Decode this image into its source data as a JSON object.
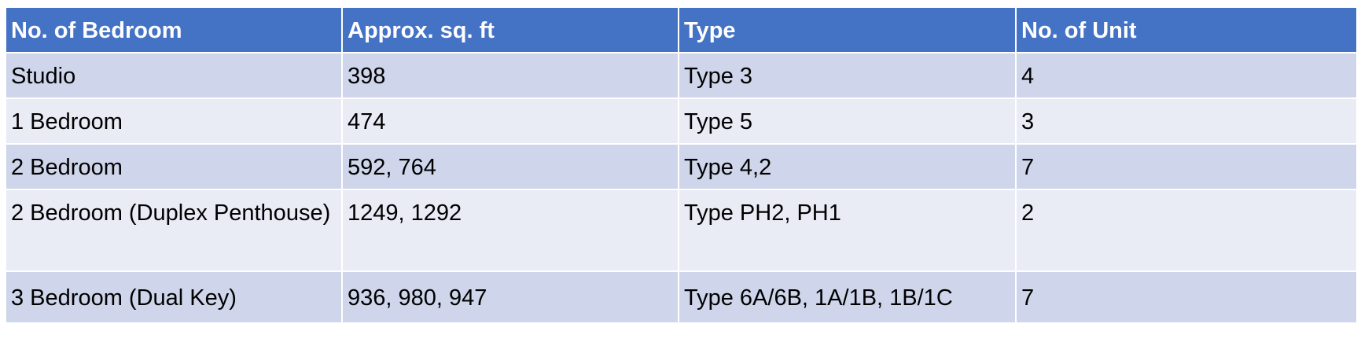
{
  "table": {
    "headers": [
      "No. of Bedroom",
      "Approx. sq. ft",
      "Type",
      "No. of Unit"
    ],
    "rows": [
      [
        "Studio",
        "398",
        "Type 3",
        "4"
      ],
      [
        "1 Bedroom",
        "474",
        "Type 5",
        "3"
      ],
      [
        "2 Bedroom",
        "592, 764",
        "Type 4,2",
        "7"
      ],
      [
        "2 Bedroom (Duplex Penthouse)",
        "1249, 1292",
        "Type PH2, PH1",
        "2"
      ],
      [
        "3 Bedroom (Dual Key)",
        "936, 980, 947",
        "Type 6A/6B, 1A/1B, 1B/1C",
        "7"
      ]
    ]
  },
  "colors": {
    "header_bg": "#4472c4",
    "row_dark": "#cfd5ea",
    "row_light": "#e9ebf5",
    "header_text": "#ffffff"
  }
}
